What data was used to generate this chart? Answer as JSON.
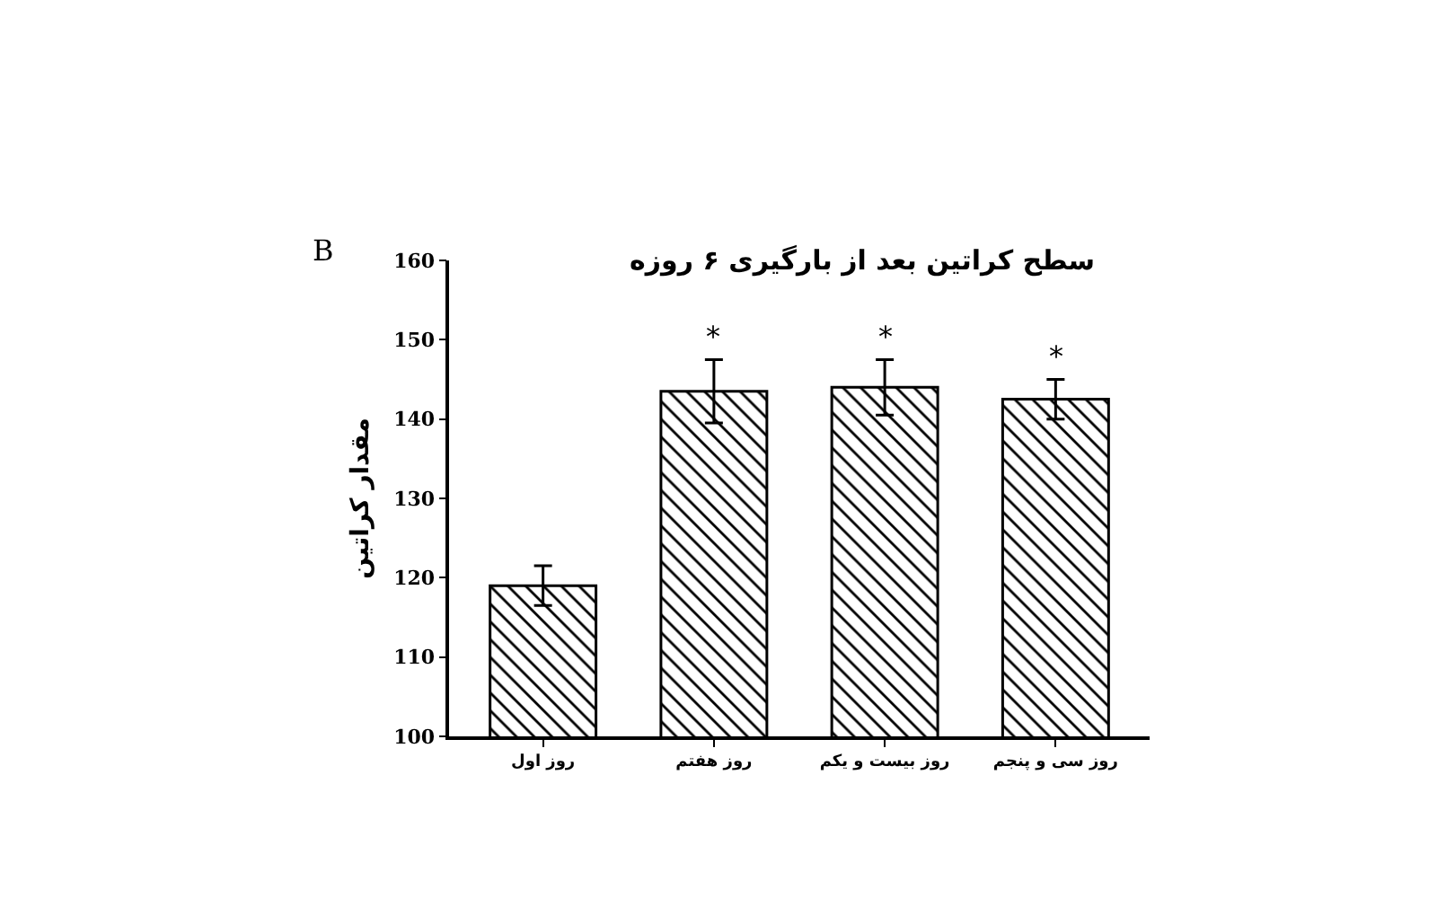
{
  "chart_data": {
    "type": "bar",
    "title": "سطح کراتین بعد از بارگیری ۶ روزه",
    "ylabel": "مقدار کراتین",
    "categories": [
      "روز اول",
      "روز هفتم",
      "روز بیست و یکم",
      "روز سی و پنجم"
    ],
    "values": [
      119,
      143.5,
      144,
      142.5
    ],
    "errors": [
      2.5,
      4,
      3.5,
      2.5
    ],
    "color": "#000000",
    "ylim": [
      100,
      160
    ],
    "yticks": [
      100,
      110,
      120,
      130,
      140,
      150,
      160
    ],
    "grid": false,
    "annotations": [
      "B",
      {
        "text": "*",
        "x": "روز هفتم",
        "y": 147.5
      },
      {
        "text": "*",
        "x": "روز بیست و یکم",
        "y": 147.5
      },
      {
        "text": "*",
        "x": "روز سی و پنجم",
        "y": 145
      }
    ]
  }
}
